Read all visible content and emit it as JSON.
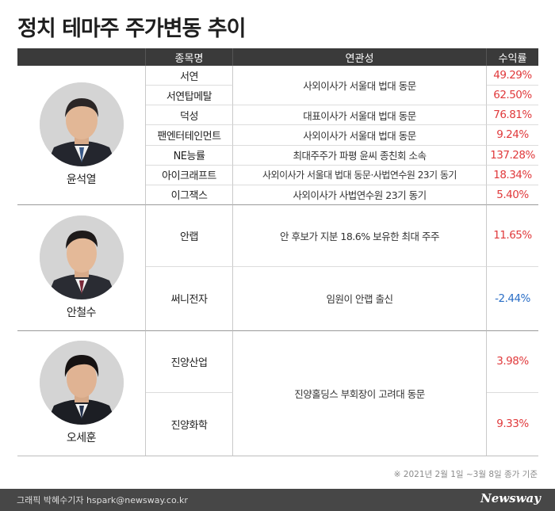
{
  "title": "정치 테마주 주가변동 추이",
  "table": {
    "headers": [
      "종목명",
      "연관성",
      "수익률"
    ],
    "groups": [
      {
        "person": "윤석열",
        "stocks": [
          {
            "name": "서연",
            "return": "49.29%"
          },
          {
            "name": "서연탑메탈",
            "return": "62.50%"
          },
          {
            "name": "덕성",
            "relation": "대표이사가 서울대 법대 동문",
            "return": "76.81%"
          },
          {
            "name": "팬엔터테인먼트",
            "relation": "사외이사가 서울대 법대 동문",
            "return": "9.24%"
          },
          {
            "name": "NE능률",
            "relation": "최대주주가 파평 윤씨 종친회 소속",
            "return": "137.28%"
          },
          {
            "name": "아이크래프트",
            "relation": "사외이사가 서울대 법대 동문·사법연수원 23기 동기",
            "return": "18.34%"
          },
          {
            "name": "이그잭스",
            "relation": "사외이사가 사법연수원 23기 동기",
            "return": "5.40%"
          }
        ],
        "shared_relation": "사외이사가 서울대 법대 동문"
      },
      {
        "person": "안철수",
        "stocks": [
          {
            "name": "안랩",
            "relation": "안 후보가 지분 18.6% 보유한 최대 주주",
            "return": "11.65%"
          },
          {
            "name": "써니전자",
            "relation": "임원이 안랩 출신",
            "return": "-2.44%"
          }
        ]
      },
      {
        "person": "오세훈",
        "stocks": [
          {
            "name": "진양산업",
            "return": "3.98%"
          },
          {
            "name": "진양화학",
            "return": "9.33%"
          }
        ],
        "shared_relation": "진양홀딩스 부회장이 고려대 동문"
      }
    ]
  },
  "note": "※  2021년 2월 1일 ~3월 8일 종가 기준",
  "footer": {
    "credit": "그래픽 박혜수기자 hspark@newsway.co.kr",
    "brand": "Newsway"
  },
  "colors": {
    "positive": "#e0393b",
    "negative": "#2a6ec6",
    "header_bg": "#3a3a3a",
    "footer_bg": "#474747"
  }
}
